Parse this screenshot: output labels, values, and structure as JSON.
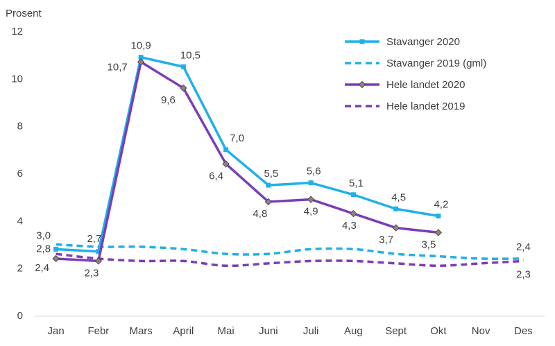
{
  "chart_data": {
    "type": "line",
    "ylabel": "Prosent",
    "ylim": [
      0,
      12
    ],
    "yticks": [
      0,
      2,
      4,
      6,
      8,
      10,
      12
    ],
    "grid": false,
    "legend_position": "top-right",
    "categories": [
      "Jan",
      "Febr",
      "Mars",
      "April",
      "Mai",
      "Juni",
      "Juli",
      "Aug",
      "Sept",
      "Okt",
      "Nov",
      "Des"
    ],
    "series": [
      {
        "name": "Stavanger 2020",
        "color": "#1FB0E8",
        "style": "solid",
        "marker": "square",
        "values": [
          2.8,
          2.7,
          10.9,
          10.5,
          7.0,
          5.5,
          5.6,
          5.1,
          4.5,
          4.2,
          null,
          null
        ],
        "labels": [
          "2,8",
          "2,7",
          "10,9",
          "10,5",
          "7,0",
          "5,5",
          "5,6",
          "5,1",
          "4,5",
          "4,2",
          "",
          ""
        ]
      },
      {
        "name": "Stavanger 2019 (gml)",
        "color": "#1FB0E8",
        "style": "dashed",
        "marker": "none",
        "values": [
          3.0,
          2.9,
          2.9,
          2.8,
          2.6,
          2.6,
          2.8,
          2.8,
          2.6,
          2.5,
          2.4,
          2.4
        ],
        "labels": [
          "3,0",
          "",
          "",
          "",
          "",
          "",
          "",
          "",
          "",
          "",
          "",
          "2,4"
        ]
      },
      {
        "name": "Hele landet 2020",
        "color": "#7A3DB8",
        "style": "solid",
        "marker": "diamond",
        "values": [
          2.4,
          2.3,
          10.7,
          9.6,
          6.4,
          4.8,
          4.9,
          4.3,
          3.7,
          3.5,
          null,
          null
        ],
        "labels": [
          "2,4",
          "2,3",
          "10,7",
          "9,6",
          "6,4",
          "4,8",
          "4,9",
          "4,3",
          "3,7",
          "3,5",
          "",
          ""
        ]
      },
      {
        "name": "Hele landet 2019",
        "color": "#7A3DB8",
        "style": "dashed",
        "marker": "none",
        "values": [
          2.6,
          2.4,
          2.3,
          2.3,
          2.1,
          2.2,
          2.3,
          2.3,
          2.2,
          2.1,
          2.2,
          2.3
        ],
        "labels": [
          "",
          "",
          "",
          "",
          "",
          "",
          "",
          "",
          "",
          "",
          "",
          "2,3"
        ]
      }
    ]
  }
}
